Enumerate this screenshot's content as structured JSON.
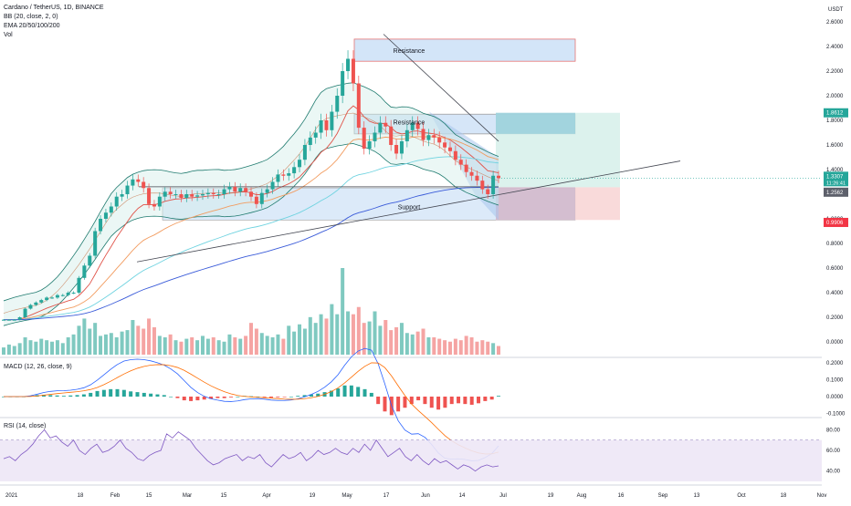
{
  "header": {
    "symbol_line": "Cardano / TetherUS, 1D, BINANCE",
    "bb_line": "BB (20, close, 2, 0)",
    "ema_line": "EMA 20/50/100/200",
    "vol_line": "Vol",
    "currency": "USDT"
  },
  "colors": {
    "up": "#26a69a",
    "down": "#ef5350",
    "up_vol": "#7fc9c0",
    "down_vol": "#f5a4a3",
    "bb": "#1e7a6e",
    "ema20": "#e0544a",
    "ema50": "#f29c60",
    "ema100": "#6fd3e0",
    "ema200": "#3a5bd9",
    "zone_fill": "#c4dcf5",
    "zone_edge": "#e57373",
    "target_fill": "#d6f0ea",
    "stop_fill": "#f8d4d4",
    "macd_line": "#2962ff",
    "signal_line": "#ff6d00",
    "rsi_line": "#7e57c2",
    "rsi_band": "#ede7f6",
    "price_tag_current": "#26a69a",
    "price_tag_target": "#26a69a",
    "price_tag_entry": "#5d606b",
    "price_tag_stop": "#f23645"
  },
  "annotations": {
    "resistance_top": "Resistance",
    "resistance_mid": "Resistance",
    "support": "Support"
  },
  "price_labels": {
    "target": "1.8612",
    "current": "1.3307",
    "countdown": "11:26:41",
    "entry": "1.2562",
    "stop": "0.9906"
  },
  "panes": {
    "macd_title": "MACD (12, 26, close, 9)",
    "rsi_title": "RSI (14, close)"
  },
  "chart_data": [
    {
      "type": "candlestick",
      "title": "Cardano / TetherUS, 1D, BINANCE",
      "ylabel": "USDT",
      "ylim": [
        0.0,
        2.6
      ],
      "y_ticks": [
        "2.6000",
        "2.4000",
        "2.2000",
        "2.0000",
        "1.8000",
        "1.6000",
        "1.4000",
        "1.2000",
        "1.0000",
        "0.8000",
        "0.6000",
        "0.4000",
        "0.2000",
        "0.0000"
      ],
      "x_ticks": [
        "2021",
        "18",
        "Feb",
        "15",
        "Mar",
        "15",
        "Apr",
        "19",
        "May",
        "17",
        "Jun",
        "14",
        "Jul",
        "19",
        "Aug",
        "16",
        "Sep",
        "13",
        "Oct",
        "18",
        "Nov"
      ],
      "key_levels": {
        "resistance_top": [
          2.28,
          2.46
        ],
        "resistance_mid": [
          1.69,
          1.85
        ],
        "support": [
          0.99,
          1.25
        ],
        "entry": 1.2562,
        "target": 1.8612,
        "stop": 0.9906,
        "last": 1.3307
      },
      "close_path": [
        0.18,
        0.18,
        0.18,
        0.2,
        0.27,
        0.3,
        0.32,
        0.34,
        0.36,
        0.36,
        0.38,
        0.38,
        0.4,
        0.4,
        0.52,
        0.62,
        0.7,
        0.9,
        1.0,
        1.05,
        1.1,
        1.18,
        1.2,
        1.27,
        1.32,
        1.3,
        1.25,
        1.12,
        1.1,
        1.18,
        1.22,
        1.2,
        1.2,
        1.17,
        1.2,
        1.18,
        1.19,
        1.2,
        1.21,
        1.2,
        1.2,
        1.24,
        1.26,
        1.22,
        1.25,
        1.22,
        1.18,
        1.12,
        1.21,
        1.24,
        1.3,
        1.36,
        1.35,
        1.37,
        1.42,
        1.48,
        1.6,
        1.66,
        1.7,
        1.8,
        1.72,
        1.87,
        2.0,
        2.2,
        2.3,
        2.1,
        1.74,
        1.57,
        1.63,
        1.7,
        1.78,
        1.75,
        1.6,
        1.53,
        1.63,
        1.72,
        1.78,
        1.73,
        1.64,
        1.68,
        1.66,
        1.62,
        1.58,
        1.55,
        1.48,
        1.44,
        1.38,
        1.35,
        1.31,
        1.24,
        1.2,
        1.35,
        1.33
      ],
      "volume_path": [
        0.05,
        0.07,
        0.06,
        0.08,
        0.12,
        0.1,
        0.09,
        0.11,
        0.1,
        0.09,
        0.1,
        0.08,
        0.12,
        0.14,
        0.2,
        0.25,
        0.18,
        0.22,
        0.13,
        0.14,
        0.15,
        0.12,
        0.16,
        0.17,
        0.24,
        0.2,
        0.18,
        0.25,
        0.19,
        0.13,
        0.12,
        0.14,
        0.1,
        0.09,
        0.11,
        0.12,
        0.1,
        0.13,
        0.11,
        0.12,
        0.1,
        0.09,
        0.14,
        0.12,
        0.11,
        0.13,
        0.22,
        0.18,
        0.15,
        0.13,
        0.12,
        0.14,
        0.11,
        0.2,
        0.16,
        0.21,
        0.18,
        0.26,
        0.22,
        0.28,
        0.25,
        0.35,
        0.28,
        0.6,
        0.3,
        0.28,
        0.33,
        0.22,
        0.23,
        0.3,
        0.2,
        0.24,
        0.17,
        0.19,
        0.22,
        0.15,
        0.14,
        0.16,
        0.18,
        0.12,
        0.12,
        0.11,
        0.1,
        0.09,
        0.11,
        0.1,
        0.13,
        0.12,
        0.09,
        0.1,
        0.09,
        0.08,
        0.06
      ]
    },
    {
      "type": "bar",
      "title": "MACD (12, 26, close, 9)",
      "y_ticks": [
        "0.2000",
        "0.1000",
        "0.0000",
        "-0.1000"
      ],
      "histogram": [
        0,
        0,
        0,
        0,
        0.002,
        0.004,
        0.005,
        0.004,
        0.003,
        0.002,
        0.003,
        0.004,
        0.006,
        0.01,
        0.015,
        0.018,
        0.02,
        0.02,
        0.018,
        0.014,
        0.012,
        0.01,
        0.008,
        0.006,
        0.004,
        0.0,
        -0.004,
        -0.01,
        -0.012,
        -0.01,
        -0.008,
        -0.006,
        -0.004,
        -0.004,
        -0.002,
        0.0,
        0.002,
        0.001,
        0.0,
        -0.002,
        -0.003,
        -0.002,
        -0.001,
        0.0,
        0.002,
        0.004,
        0.006,
        0.008,
        0.012,
        0.016,
        0.022,
        0.03,
        0.03,
        0.026,
        0.02,
        0.01,
        -0.02,
        -0.04,
        -0.05,
        -0.04,
        -0.03,
        -0.02,
        -0.01,
        -0.02,
        -0.03,
        -0.035,
        -0.03,
        -0.02,
        -0.018,
        -0.02,
        -0.022,
        -0.018,
        -0.012,
        -0.008,
        0.002
      ]
    },
    {
      "type": "line",
      "title": "RSI (14, close)",
      "y_ticks": [
        "80.00",
        "60.00",
        "40.00"
      ],
      "ylim": [
        30,
        90
      ],
      "band": [
        30,
        70
      ],
      "values": [
        52,
        54,
        50,
        56,
        60,
        66,
        74,
        80,
        72,
        74,
        68,
        64,
        70,
        60,
        56,
        62,
        66,
        58,
        60,
        64,
        70,
        62,
        58,
        52,
        50,
        55,
        58,
        60,
        76,
        72,
        78,
        74,
        70,
        62,
        56,
        50,
        46,
        48,
        52,
        54,
        56,
        50,
        54,
        52,
        56,
        48,
        44,
        50,
        56,
        52,
        54,
        58,
        50,
        54,
        60,
        56,
        58,
        62,
        58,
        56,
        62,
        58,
        66,
        60,
        70,
        62,
        54,
        58,
        62,
        54,
        50,
        56,
        50,
        46,
        52,
        48,
        50,
        46,
        42,
        46,
        44,
        40,
        44,
        46,
        44,
        45
      ]
    }
  ]
}
